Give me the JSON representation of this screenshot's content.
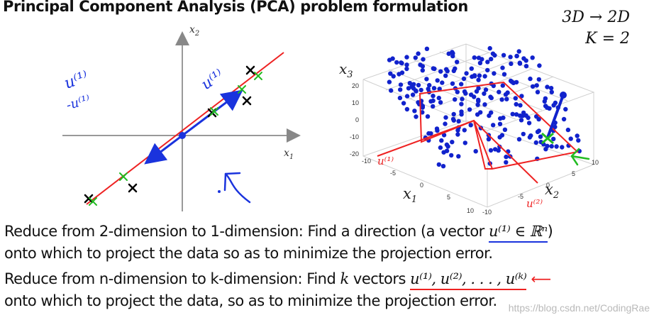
{
  "slide": {
    "title": "Principal Component Analysis (PCA) problem formulation",
    "dimension_note": "3D → 2D",
    "k_note": "K = 2"
  },
  "plot2d": {
    "x_axis_label": "x",
    "x_axis_sub": "1",
    "y_axis_label": "x",
    "y_axis_sub": "2",
    "handwritten_u1_right": "u⁽¹⁾",
    "handwritten_u1_left": "u⁽¹⁾",
    "handwritten_neg_u1": "-u⁽¹⁾",
    "colors": {
      "data_point": "#000000",
      "projection": "#22bb22",
      "line": "#ee2222",
      "vector": "#1a33dd"
    }
  },
  "plot3d": {
    "z_label": "x",
    "z_sub": "3",
    "x_label": "x",
    "x_sub": "1",
    "y_label": "x",
    "y_sub": "2",
    "z_ticks": [
      "20",
      "10",
      "0",
      "-10",
      "-20"
    ],
    "x_ticks": [
      "-10",
      "-5",
      "0",
      "5",
      "10"
    ],
    "y_ticks": [
      "-10",
      "-5",
      "0",
      "5",
      "10"
    ],
    "handwritten_u1": "u⁽¹⁾",
    "handwritten_u2": "u⁽²⁾",
    "colors": {
      "point": "#1122cc",
      "plane": "#ee2222"
    }
  },
  "text": {
    "line1_pre": "Reduce from 2-dimension to 1-dimension: Find a direction (a vector",
    "line1_math": "u⁽¹⁾ ∈ ℝⁿ",
    "line1_post": ")",
    "line2": "onto which to project the data so as to minimize the projection error.",
    "line3_pre": "Reduce from n-dimension to k-dimension: Find",
    "line3_k": "k",
    "line3_mid": "vectors",
    "line3_math": "u⁽¹⁾, u⁽²⁾, . . . , u⁽ᵏ⁾",
    "line4": "onto which to project the data, so as to minimize the projection error."
  },
  "watermark": "https://blog.csdn.net/CodingRae"
}
